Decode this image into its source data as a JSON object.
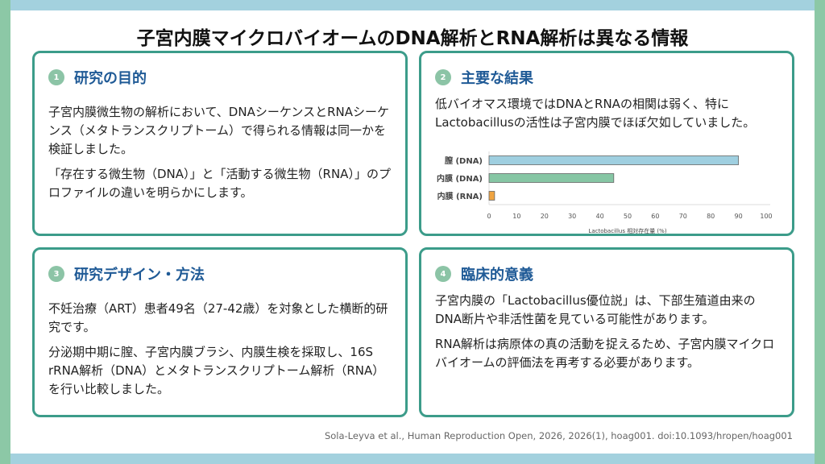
{
  "title": "子宮内膜マイクロバイオームのDNA解析とRNA解析は異なる情報",
  "cards": [
    {
      "num": "1",
      "heading": "研究の目的",
      "paragraphs": [
        "子宮内膜微生物の解析において、DNAシーケンスとRNAシーケンス（メタトランスクリプトーム）で得られる情報は同一かを検証しました。",
        "「存在する微生物（DNA）」と「活動する微生物（RNA）」のプロファイルの違いを明らかにします。"
      ]
    },
    {
      "num": "2",
      "heading": "主要な結果",
      "paragraphs": [
        "低バイオマス環境ではDNAとRNAの相関は弱く、特にLactobacillusの活性は子宮内膜でほぼ欠如していました。"
      ]
    },
    {
      "num": "3",
      "heading": "研究デザイン・方法",
      "paragraphs": [
        "不妊治療（ART）患者49名（27-42歳）を対象とした横断的研究です。",
        "分泌期中期に膣、子宮内膜ブラシ、内膜生検を採取し、16S rRNA解析（DNA）とメタトランスクリプトーム解析（RNA）を行い比較しました。"
      ]
    },
    {
      "num": "4",
      "heading": "臨床的意義",
      "paragraphs": [
        "子宮内膜の「Lactobacillus優位説」は、下部生殖道由来のDNA断片や非活性菌を見ている可能性があります。",
        "RNA解析は病原体の真の活動を捉えるため、子宮内膜マイクロバイオームの評価法を再考する必要があります。"
      ]
    }
  ],
  "citation": "Sola-Leyva et al., Human Reproduction Open, 2026, 2026(1), hoag001. doi:10.1093/hropen/hoag001",
  "chart_data": {
    "type": "bar",
    "orientation": "horizontal",
    "categories": [
      "膣 (DNA)",
      "内膜 (DNA)",
      "内膜 (RNA)"
    ],
    "values": [
      90,
      45,
      2
    ],
    "colors": [
      "#9fcfe0",
      "#86c6a4",
      "#f0a441"
    ],
    "xlabel": "Lactobacillus 相対存在量 (%)",
    "xlim": [
      0,
      100
    ],
    "xticks": [
      "0",
      "10",
      "20",
      "30",
      "40",
      "50",
      "60",
      "70",
      "80",
      "90",
      "100"
    ]
  }
}
